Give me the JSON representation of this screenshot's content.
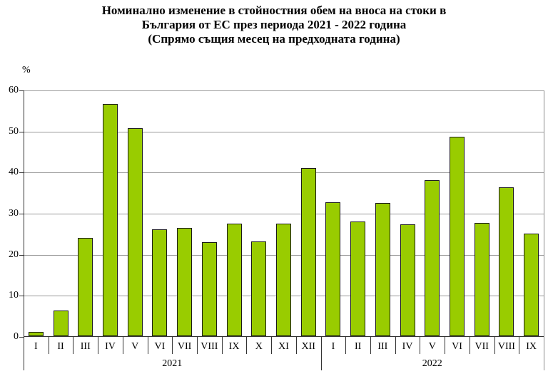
{
  "title": {
    "line1": "Номинално изменение в стойностния обем на вноса на стоки в",
    "line2": "България от ЕС през периода 2021 - 2022 година",
    "line3": "(Спрямо същия месец на предходната година)"
  },
  "chart_data": {
    "type": "bar",
    "title": "Номинално изменение в стойностния обем на вноса на стоки в България от ЕС през периода 2021 - 2022 година (Спрямо същия месец на предходната година)",
    "ylabel": "%",
    "xlabel": "",
    "ylim": [
      0,
      60
    ],
    "yticks": [
      0,
      10,
      20,
      30,
      40,
      50,
      60
    ],
    "grid": true,
    "legend": false,
    "bar_color": "#99CC00",
    "bar_border_color": "#1A1A1A",
    "gridline_color": "#999999",
    "axis_color": "#333333",
    "groups": [
      {
        "year": "2021",
        "categories": [
          "I",
          "II",
          "III",
          "IV",
          "V",
          "VI",
          "VII",
          "VIII",
          "IX",
          "X",
          "XI",
          "XII"
        ],
        "values": [
          1.1,
          6.3,
          24.0,
          56.6,
          50.6,
          26.1,
          26.4,
          22.9,
          27.4,
          23.1,
          27.4,
          41.0
        ]
      },
      {
        "year": "2022",
        "categories": [
          "I",
          "II",
          "III",
          "IV",
          "V",
          "VI",
          "VII",
          "VIII",
          "IX"
        ],
        "values": [
          32.6,
          28.0,
          32.4,
          27.2,
          37.9,
          48.5,
          27.6,
          36.3,
          25.0
        ]
      }
    ]
  }
}
